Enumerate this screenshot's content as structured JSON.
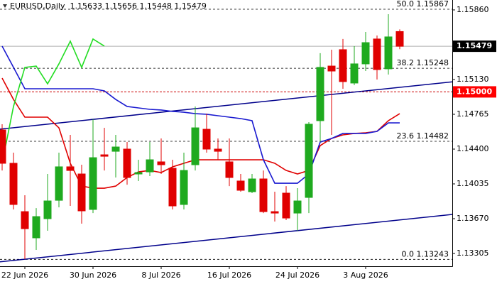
{
  "chart_data": {
    "type": "candlestick",
    "title": "EURUSD,Daily  1.15633 1.15656 1.15448 1.15479",
    "categories": [
      null,
      null,
      "22 Jun 2026",
      null,
      null,
      null,
      null,
      null,
      "30 Jun 2026",
      null,
      null,
      null,
      null,
      null,
      "8 Jul 2026",
      null,
      null,
      null,
      null,
      null,
      "16 Jul 2026",
      null,
      null,
      null,
      null,
      null,
      "24 Jul 2026",
      null,
      null,
      null,
      null,
      null,
      "3 Aug 2026",
      null,
      null,
      null
    ],
    "open": [
      1.14601,
      1.14251,
      1.13744,
      1.13469,
      1.1367,
      1.13863,
      1.14214,
      1.14139,
      1.13767,
      1.1434,
      1.14377,
      1.144,
      1.14139,
      1.14161,
      1.14266,
      1.14199,
      1.13819,
      1.14236,
      1.14608,
      1.144,
      1.14266,
      1.14065,
      1.13953,
      1.14087,
      1.13744,
      1.13938,
      1.13729,
      1.13893,
      1.14698,
      1.15271,
      1.15443,
      1.15093,
      1.15294,
      1.15555,
      1.15242,
      1.15633
    ],
    "high": [
      1.14661,
      1.14363,
      1.13916,
      1.13781,
      1.14139,
      1.14363,
      1.14549,
      1.14236,
      1.14713,
      1.14623,
      1.14549,
      1.14474,
      1.14288,
      1.14474,
      1.14512,
      1.14288,
      1.14363,
      1.14847,
      1.14772,
      1.14512,
      1.14512,
      1.14139,
      1.14139,
      1.14176,
      1.13953,
      1.14012,
      1.1399,
      1.14683,
      1.15406,
      1.15443,
      1.15555,
      1.1548,
      1.15629,
      1.15592,
      1.15815,
      1.15656
    ],
    "low": [
      1.14176,
      1.13767,
      1.13245,
      1.13342,
      1.13543,
      1.13789,
      1.13804,
      1.13618,
      1.13729,
      1.14176,
      1.14102,
      1.14027,
      1.14065,
      1.14117,
      1.14139,
      1.13767,
      1.13767,
      1.14176,
      1.14363,
      1.14288,
      1.14012,
      1.13953,
      1.13938,
      1.13729,
      1.1364,
      1.13655,
      1.13543,
      1.13729,
      1.14474,
      1.14549,
      1.15033,
      1.15071,
      1.15219,
      1.1513,
      1.15182,
      1.15448
    ],
    "close": [
      1.14251,
      1.13819,
      1.13565,
      1.13692,
      1.13856,
      1.14214,
      1.14176,
      1.13752,
      1.1431,
      1.14325,
      1.14422,
      1.14102,
      1.14154,
      1.14288,
      1.14236,
      1.13804,
      1.14176,
      1.14623,
      1.144,
      1.14377,
      1.14102,
      1.13968,
      1.14087,
      1.13744,
      1.13729,
      1.13677,
      1.13856,
      1.14661,
      1.15257,
      1.15219,
      1.15108,
      1.15294,
      1.15517,
      1.15234,
      1.15577,
      1.15479
    ],
    "up_color": "#1faa1f",
    "down_color": "#e00000",
    "overlays": [
      {
        "color": "#e00000",
        "values": [
          1.15145,
          1.14921,
          1.14735,
          1.14735,
          1.14735,
          1.14623,
          1.14251,
          1.14012,
          1.1399,
          1.1399,
          1.14012,
          1.14102,
          1.14161,
          1.14176,
          1.14154,
          1.14214,
          1.14251,
          1.14288,
          1.14288,
          1.14288,
          1.14288,
          1.14288,
          1.14288,
          1.14288,
          1.14251,
          1.14176,
          1.14139,
          1.14176,
          1.14437,
          1.14512,
          1.14549,
          1.14564,
          1.14571,
          1.14586,
          1.14698,
          1.14772
        ]
      },
      {
        "color": "#1a1ad0",
        "values": [
          1.1548,
          1.15257,
          1.15033,
          1.15033,
          1.15033,
          1.15033,
          1.15033,
          1.15033,
          1.15033,
          1.15011,
          1.14921,
          1.14847,
          1.14832,
          1.14817,
          1.1481,
          1.14795,
          1.14787,
          1.14772,
          1.14765,
          1.1475,
          1.14735,
          1.1472,
          1.14698,
          1.14288,
          1.14042,
          1.14042,
          1.14042,
          1.14139,
          1.14474,
          1.14512,
          1.14564,
          1.14564,
          1.14564,
          1.14586,
          1.14675,
          1.14675
        ]
      },
      {
        "color": "#22dd22",
        "values": [
          1.14251,
          1.14847,
          1.15257,
          1.15271,
          1.15085,
          1.15294,
          1.15532,
          1.15257,
          1.15555,
          1.1548,
          null,
          null,
          null,
          null,
          null,
          null,
          null,
          null,
          null,
          null,
          null,
          null,
          null,
          null,
          null,
          null,
          null,
          null,
          null,
          null,
          null,
          null,
          null,
          null,
          null,
          null
        ]
      }
    ],
    "trendlines": [
      {
        "color": "#00008b",
        "values": [
          1.14612,
          1.15048
        ]
      },
      {
        "color": "#00008b",
        "values": [
          1.1322,
          1.13657
        ]
      }
    ],
    "levels": [
      {
        "value": 1.15867,
        "label": "50.0 1.15867",
        "color": "#000000"
      },
      {
        "value": 1.15248,
        "label": "38.2 1.15248",
        "color": "#000000"
      },
      {
        "value": 1.14482,
        "label": "23.6 1.14482",
        "color": "#000000"
      },
      {
        "value": 1.13243,
        "label": "0.0 1.13243",
        "color": "#000000"
      }
    ],
    "price_marks": [
      {
        "value": 1.15479,
        "label": "1.15479",
        "color": "#000000",
        "line_color": "#b0b0b0"
      },
      {
        "value": 1.15,
        "label": "1.15000",
        "color": "#ff0000",
        "line_color": "#cc0000"
      }
    ],
    "ylim": [
      1.13171,
      1.15964
    ],
    "yticks": [
      {
        "value": 1.1586,
        "label": "1.15860"
      },
      {
        "value": 1.1513,
        "label": "1.15130"
      },
      1.14765,
      {
        "value": 1.144,
        "label": "1.14400"
      },
      1.14035,
      {
        "value": 1.1367,
        "label": "1.13670"
      },
      1.13305
    ]
  }
}
